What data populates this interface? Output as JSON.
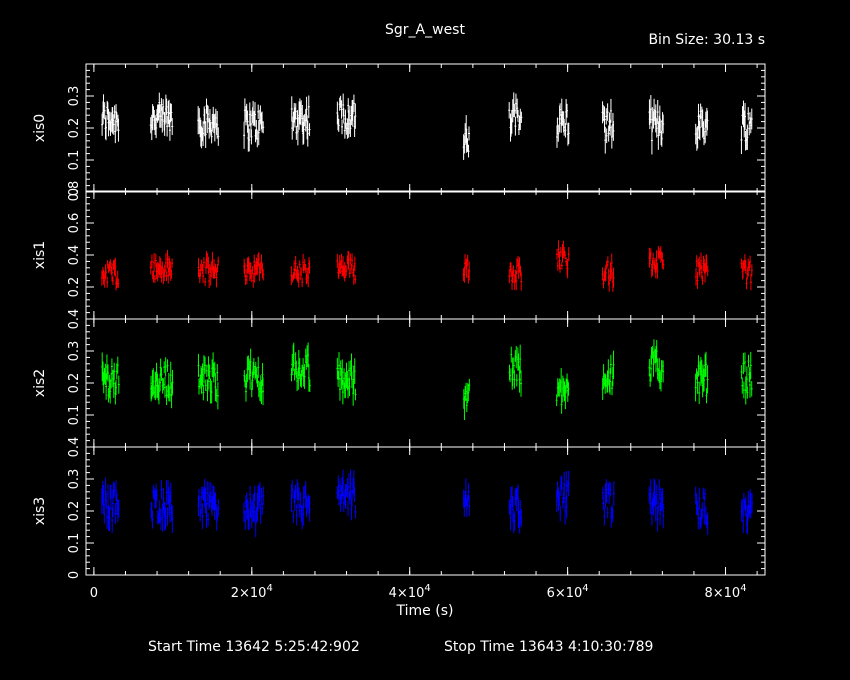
{
  "chart_data": {
    "type": "scatter",
    "title": "Sgr_A_west",
    "bin_size_label": "Bin Size: 30.13 s",
    "xlabel": "Time (s)",
    "xlim": [
      -1000,
      85000
    ],
    "x_ticks": [
      {
        "value": 0,
        "mant": "0",
        "exp": ""
      },
      {
        "value": 20000,
        "mant": "2×10",
        "exp": "4"
      },
      {
        "value": 40000,
        "mant": "4×10",
        "exp": "4"
      },
      {
        "value": 60000,
        "mant": "6×10",
        "exp": "4"
      },
      {
        "value": 80000,
        "mant": "8×10",
        "exp": "4"
      }
    ],
    "footer": {
      "start": "Start Time 13642  5:25:42:902",
      "stop": "Stop Time 13643  4:10:30:789"
    },
    "segments": [
      [
        1000,
        3200
      ],
      [
        7200,
        10000
      ],
      [
        13200,
        15800
      ],
      [
        19000,
        21500
      ],
      [
        25000,
        27400
      ],
      [
        30800,
        33200
      ],
      [
        46800,
        47600
      ],
      [
        52600,
        54200
      ],
      [
        58600,
        60200
      ],
      [
        64400,
        65900
      ],
      [
        70300,
        72200
      ],
      [
        76200,
        77800
      ],
      [
        82000,
        83400
      ]
    ],
    "panels": [
      {
        "name": "xis0",
        "color": "#ffffff",
        "ylim": [
          0,
          0.4
        ],
        "yticks": [
          0,
          0.1,
          0.2,
          0.3
        ],
        "ytick_labels": [
          "0",
          "0.1",
          "0.2",
          "0.3"
        ],
        "levels": [
          0.23,
          0.23,
          0.22,
          0.21,
          0.23,
          0.24,
          0.15,
          0.23,
          0.22,
          0.21,
          0.21,
          0.21,
          0.21
        ],
        "spread": 0.05
      },
      {
        "name": "xis1",
        "color": "#ff0000",
        "ylim": [
          0,
          0.8
        ],
        "yticks": [
          0.2,
          0.4,
          0.6,
          0.8
        ],
        "ytick_labels": [
          "0.2",
          "0.4",
          "0.6",
          "0.8"
        ],
        "levels": [
          0.29,
          0.31,
          0.3,
          0.31,
          0.29,
          0.31,
          0.33,
          0.3,
          0.38,
          0.29,
          0.35,
          0.31,
          0.29
        ],
        "spread": 0.07
      },
      {
        "name": "xis2",
        "color": "#00ff00",
        "ylim": [
          0,
          0.4
        ],
        "yticks": [
          0.1,
          0.2,
          0.3,
          0.4
        ],
        "ytick_labels": [
          "0.1",
          "0.2",
          "0.3",
          "0.4"
        ],
        "levels": [
          0.21,
          0.21,
          0.21,
          0.22,
          0.24,
          0.21,
          0.17,
          0.24,
          0.17,
          0.23,
          0.25,
          0.21,
          0.22
        ],
        "spread": 0.05
      },
      {
        "name": "xis3",
        "color": "#0000ff",
        "ylim": [
          0,
          0.4
        ],
        "yticks": [
          0,
          0.1,
          0.2,
          0.3,
          0.4
        ],
        "ytick_labels": [
          "0",
          "0.1",
          "0.2",
          "0.3",
          "0.4"
        ],
        "levels": [
          0.22,
          0.22,
          0.21,
          0.21,
          0.22,
          0.24,
          0.22,
          0.21,
          0.24,
          0.22,
          0.22,
          0.21,
          0.21
        ],
        "spread": 0.05
      }
    ]
  }
}
